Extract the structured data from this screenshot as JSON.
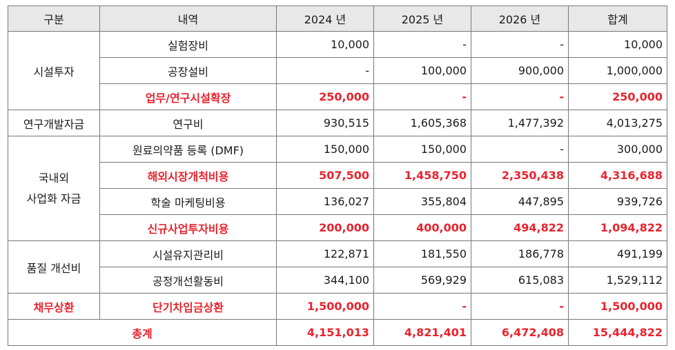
{
  "header": {
    "category": "구분",
    "item": "내역",
    "y2024": "2024 년",
    "y2025": "2025 년",
    "y2026": "2026 년",
    "total": "합계"
  },
  "groups": {
    "facility": "시설투자",
    "rnd": "연구개발자금",
    "business_line1": "국내외",
    "business_line2": "사업화 자금",
    "quality": "품질 개선비",
    "debt": "채무상환"
  },
  "rows": [
    {
      "item": "실험장비",
      "y2024": "10,000",
      "y2025": "-",
      "y2026": "-",
      "total": "10,000",
      "highlight": false
    },
    {
      "item": "공장설비",
      "y2024": "-",
      "y2025": "100,000",
      "y2026": "900,000",
      "total": "1,000,000",
      "highlight": false
    },
    {
      "item": "업무/연구시설확장",
      "y2024": "250,000",
      "y2025": "-",
      "y2026": "-",
      "total": "250,000",
      "highlight": true
    },
    {
      "item": "연구비",
      "y2024": "930,515",
      "y2025": "1,605,368",
      "y2026": "1,477,392",
      "total": "4,013,275",
      "highlight": false
    },
    {
      "item": "원료의약품 등록 (DMF)",
      "y2024": "150,000",
      "y2025": "150,000",
      "y2026": "-",
      "total": "300,000",
      "highlight": false
    },
    {
      "item": "해외시장개척비용",
      "y2024": "507,500",
      "y2025": "1,458,750",
      "y2026": "2,350,438",
      "total": "4,316,688",
      "highlight": true
    },
    {
      "item": "학술 마케팅비용",
      "y2024": "136,027",
      "y2025": "355,804",
      "y2026": "447,895",
      "total": "939,726",
      "highlight": false
    },
    {
      "item": "신규사업투자비용",
      "y2024": "200,000",
      "y2025": "400,000",
      "y2026": "494,822",
      "total": "1,094,822",
      "highlight": true
    },
    {
      "item": "시설유지관리비",
      "y2024": "122,871",
      "y2025": "181,550",
      "y2026": "186,778",
      "total": "491,199",
      "highlight": false
    },
    {
      "item": "공정개선활동비",
      "y2024": "344,100",
      "y2025": "569,929",
      "y2026": "615,083",
      "total": "1,529,112",
      "highlight": false
    },
    {
      "item": "단기차입금상환",
      "y2024": "1,500,000",
      "y2025": "-",
      "y2026": "-",
      "total": "1,500,000",
      "highlight": true
    }
  ],
  "grand_total": {
    "label": "총계",
    "y2024": "4,151,013",
    "y2025": "4,821,401",
    "y2026": "6,472,408",
    "total": "15,444,822"
  },
  "colors": {
    "highlight": "#e8232e",
    "header_bg": "#e8e8e8",
    "border": "#777777"
  }
}
